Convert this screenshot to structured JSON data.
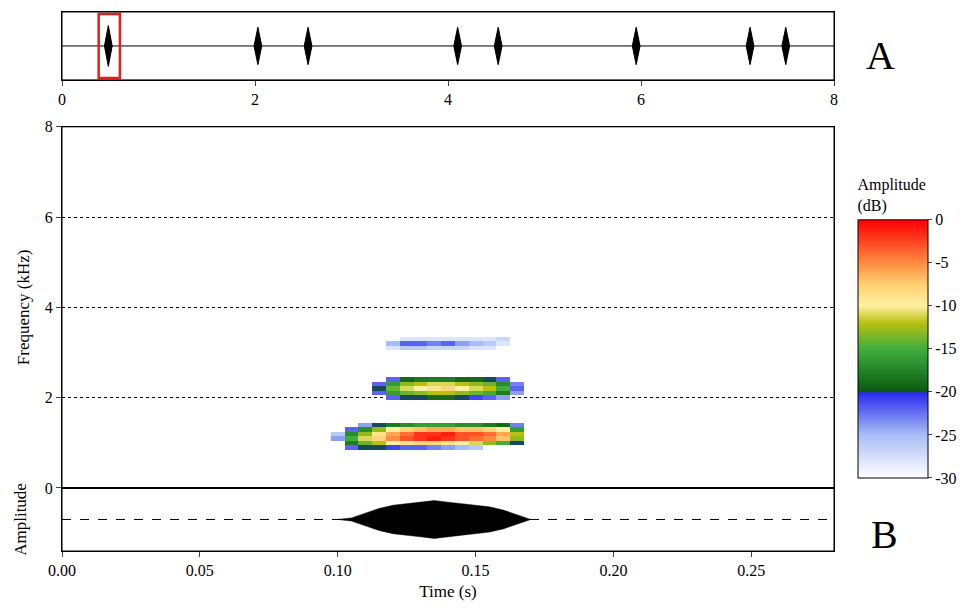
{
  "chart_data": [
    {
      "panel": "A",
      "type": "oscillogram",
      "xlim": [
        0,
        8
      ],
      "xticks": [
        0,
        2,
        4,
        6,
        8
      ],
      "ylim": [
        -1,
        1
      ],
      "tick_labels": "x",
      "baseline": 0,
      "pulse_duration": 0.08,
      "pulses": [
        {
          "t": 0.48,
          "amplitude": 0.6
        },
        {
          "t": 2.03,
          "amplitude": 0.55
        },
        {
          "t": 2.55,
          "amplitude": 0.55
        },
        {
          "t": 4.1,
          "amplitude": 0.55
        },
        {
          "t": 4.52,
          "amplitude": 0.55
        },
        {
          "t": 5.95,
          "amplitude": 0.55
        },
        {
          "t": 7.13,
          "amplitude": 0.55
        },
        {
          "t": 7.5,
          "amplitude": 0.55
        }
      ],
      "highlight": {
        "x0": 0.38,
        "x1": 0.6,
        "color": "#e02020"
      }
    },
    {
      "panel": "B",
      "type": "heatmap",
      "ylabel": "Frequency (kHz)",
      "xlim": [
        0,
        0.28
      ],
      "ylim": [
        0,
        8
      ],
      "yticks": [
        0,
        2,
        4,
        6,
        8
      ],
      "grid": true,
      "tick_labels": "y",
      "spectrogram": {
        "time_s": [
          0.1,
          0.105,
          0.11,
          0.115,
          0.12,
          0.125,
          0.13,
          0.135,
          0.14,
          0.145,
          0.15,
          0.155,
          0.16,
          0.165,
          0.17
        ],
        "frequency_khz": [
          0.8,
          0.9,
          1.0,
          1.1,
          1.2,
          1.3,
          1.4,
          1.5,
          1.6,
          1.7,
          1.8,
          1.9,
          2.0,
          2.1,
          2.2,
          2.3,
          2.4,
          2.5,
          2.6,
          2.7,
          2.8,
          2.9,
          3.0,
          3.1,
          3.2,
          3.3,
          3.4
        ],
        "amplitude_db": [
          [
            null,
            null,
            null,
            null,
            null,
            null,
            null,
            null,
            null,
            null,
            null,
            null,
            null,
            null,
            null
          ],
          [
            null,
            -22,
            -20,
            -20,
            -21,
            -22,
            -22,
            -23,
            -24,
            -25,
            -26,
            null,
            null,
            null,
            null
          ],
          [
            null,
            -18,
            -14,
            -12,
            -10,
            -9,
            -8,
            -8,
            -9,
            -10,
            -11,
            -13,
            -15,
            -20,
            null
          ],
          [
            -24,
            -15,
            -11,
            -8,
            -5,
            -3,
            -2,
            -1,
            -2,
            -3,
            -4,
            -5,
            -7,
            -13,
            null
          ],
          [
            -26,
            -17,
            -13,
            -9,
            -6,
            -4,
            -2,
            -2,
            -1,
            -3,
            -3,
            -4,
            -6,
            -12,
            null
          ],
          [
            null,
            -22,
            -17,
            -13,
            -10,
            -8,
            -7,
            -6,
            -6,
            -7,
            -7,
            -8,
            -10,
            -16,
            null
          ],
          [
            null,
            null,
            -24,
            -20,
            -18,
            -17,
            -16,
            -16,
            -16,
            -17,
            -17,
            -18,
            -19,
            -23,
            null
          ],
          [
            null,
            null,
            null,
            null,
            null,
            null,
            null,
            null,
            null,
            null,
            null,
            null,
            null,
            null,
            null
          ],
          [
            null,
            null,
            null,
            null,
            null,
            null,
            null,
            null,
            null,
            null,
            null,
            null,
            null,
            null,
            null
          ],
          [
            null,
            null,
            null,
            null,
            null,
            null,
            null,
            null,
            null,
            null,
            null,
            null,
            null,
            null,
            null
          ],
          [
            null,
            null,
            null,
            null,
            null,
            null,
            null,
            null,
            null,
            null,
            null,
            null,
            null,
            null,
            null
          ],
          [
            null,
            null,
            null,
            null,
            null,
            null,
            null,
            null,
            null,
            null,
            null,
            null,
            null,
            null,
            null
          ],
          [
            null,
            null,
            null,
            null,
            -22,
            -20,
            -20,
            -19,
            -19,
            -20,
            -21,
            -22,
            -24,
            null,
            null
          ],
          [
            null,
            null,
            null,
            -22,
            -16,
            -14,
            -13,
            -12,
            -12,
            -13,
            -14,
            -15,
            -18,
            -24,
            null
          ],
          [
            null,
            null,
            null,
            -20,
            -14,
            -11,
            -10,
            -9,
            -8,
            -10,
            -11,
            -12,
            -15,
            -22,
            null
          ],
          [
            null,
            null,
            null,
            -22,
            -16,
            -13,
            -12,
            -11,
            -11,
            -12,
            -13,
            -14,
            -17,
            -23,
            null
          ],
          [
            null,
            null,
            null,
            null,
            -22,
            -19,
            -18,
            -18,
            -18,
            -19,
            -19,
            -20,
            -22,
            null,
            null
          ],
          [
            null,
            null,
            null,
            null,
            null,
            null,
            null,
            null,
            null,
            null,
            null,
            null,
            null,
            null,
            null
          ],
          [
            null,
            null,
            null,
            null,
            null,
            null,
            null,
            null,
            null,
            null,
            null,
            null,
            null,
            null,
            null
          ],
          [
            null,
            null,
            null,
            null,
            null,
            null,
            null,
            null,
            null,
            null,
            null,
            null,
            null,
            null,
            null
          ],
          [
            null,
            null,
            null,
            null,
            null,
            null,
            null,
            null,
            null,
            null,
            null,
            null,
            null,
            null,
            null
          ],
          [
            null,
            null,
            null,
            null,
            null,
            null,
            null,
            null,
            null,
            null,
            null,
            null,
            null,
            null,
            null
          ],
          [
            null,
            null,
            null,
            null,
            null,
            null,
            null,
            null,
            null,
            null,
            null,
            null,
            null,
            null,
            null
          ],
          [
            null,
            null,
            null,
            null,
            -28,
            -26,
            -26,
            -27,
            -27,
            -27,
            -28,
            -28,
            null,
            null,
            null
          ],
          [
            null,
            null,
            null,
            null,
            -25,
            -22,
            -22,
            -23,
            -22,
            -24,
            -25,
            -26,
            -28,
            null,
            null
          ],
          [
            null,
            null,
            null,
            null,
            null,
            -28,
            -28,
            -28,
            -28,
            -28,
            -28,
            -28,
            -27,
            null,
            null
          ],
          [
            null,
            null,
            null,
            null,
            null,
            null,
            null,
            null,
            null,
            null,
            null,
            null,
            null,
            null,
            null
          ]
        ]
      },
      "colorbar": {
        "title": "Amplitude (dB)",
        "zlim": [
          -30,
          0
        ],
        "zticks": [
          0,
          -5,
          -10,
          -15,
          -20,
          -25,
          -30
        ]
      }
    },
    {
      "panel": "B",
      "type": "waveform",
      "xlabel": "Time (s)",
      "ylabel": "Amplitude",
      "xlim": [
        0,
        0.28
      ],
      "xticks": [
        {
          "value": 0,
          "label": "0.00"
        },
        {
          "value": 0.05,
          "label": "0.05"
        },
        {
          "value": 0.1,
          "label": "0.10"
        },
        {
          "value": 0.15,
          "label": "0.15"
        },
        {
          "value": 0.2,
          "label": "0.20"
        },
        {
          "value": 0.25,
          "label": "0.25"
        }
      ],
      "ylim": [
        -1,
        1
      ],
      "tick_labels": "x",
      "baseline": 0,
      "x": [
        0.1,
        0.105,
        0.11,
        0.115,
        0.12,
        0.125,
        0.13,
        0.135,
        0.14,
        0.145,
        0.15,
        0.155,
        0.16,
        0.165,
        0.17
      ],
      "envelope": [
        0,
        0.05,
        0.2,
        0.35,
        0.45,
        0.5,
        0.55,
        0.6,
        0.55,
        0.5,
        0.45,
        0.4,
        0.3,
        0.15,
        0
      ]
    }
  ]
}
